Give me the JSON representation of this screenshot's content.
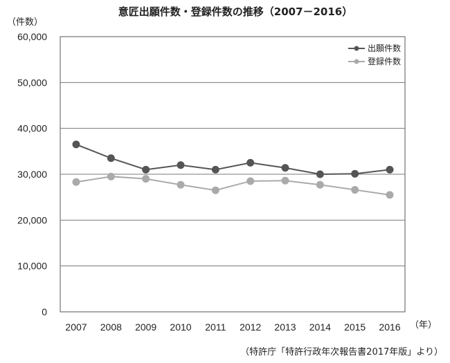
{
  "chart_data": {
    "type": "line",
    "title": "意匠出願件数・登録件数の推移（2007－2016）",
    "ylabel": "（件数）",
    "xlabel": "（年）",
    "source": "（特許庁「特許行政年次報告書2017年版」より）",
    "categories": [
      "2007",
      "2008",
      "2009",
      "2010",
      "2011",
      "2012",
      "2013",
      "2014",
      "2015",
      "2016"
    ],
    "ylim": [
      0,
      60000
    ],
    "y_ticks": [
      0,
      10000,
      20000,
      30000,
      40000,
      50000,
      60000
    ],
    "y_tick_labels": [
      "0",
      "10,000",
      "20,000",
      "30,000",
      "40,000",
      "50,000",
      "60,000"
    ],
    "grid": true,
    "legend_position": "top-right",
    "series": [
      {
        "name": "出願件数",
        "color": "#555555",
        "values": [
          36500,
          33500,
          31000,
          32000,
          31000,
          32500,
          31400,
          30000,
          30100,
          31000
        ]
      },
      {
        "name": "登録件数",
        "color": "#aaaaaa",
        "values": [
          28300,
          29500,
          29000,
          27700,
          26500,
          28500,
          28600,
          27700,
          26600,
          25500
        ]
      }
    ]
  }
}
